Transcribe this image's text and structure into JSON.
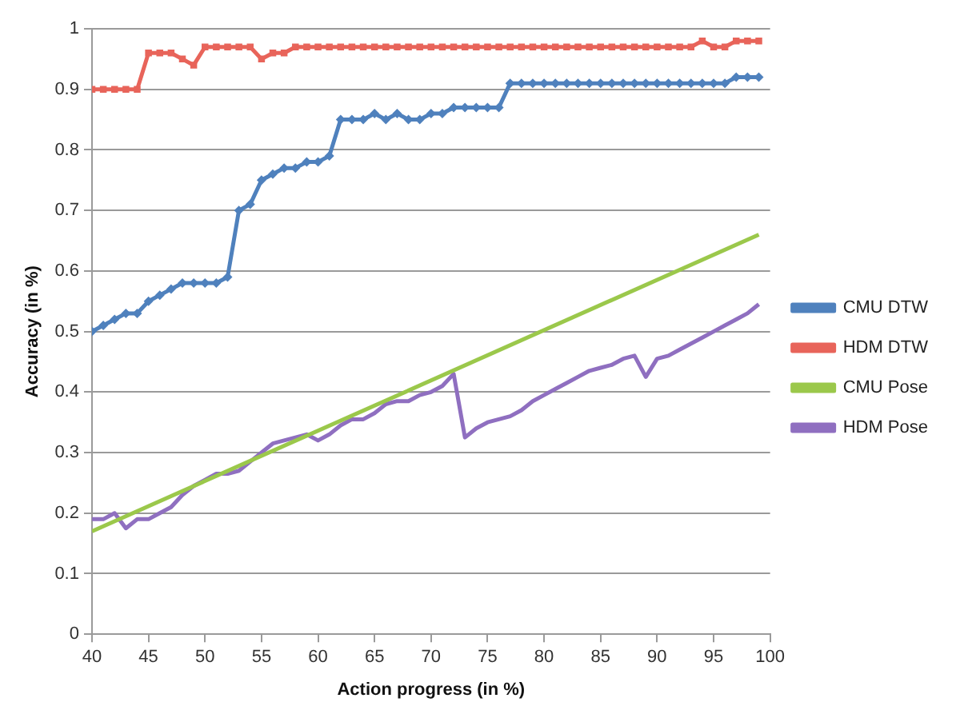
{
  "chart_data": {
    "type": "line",
    "xlabel": "Action progress (in %)",
    "ylabel": "Accuracy (in %)",
    "xlim": [
      40,
      100
    ],
    "xticks": [
      40,
      45,
      50,
      55,
      60,
      65,
      70,
      75,
      80,
      85,
      90,
      95,
      100
    ],
    "ylim": [
      0,
      1
    ],
    "yticks": [
      0,
      0.1,
      0.2,
      0.3,
      0.4,
      0.5,
      0.6,
      0.7,
      0.8,
      0.9,
      1
    ],
    "grid": "y",
    "legend": "right",
    "line_style": "solid",
    "series": [
      {
        "name": "CMU DTW",
        "color": "#4f81bd",
        "marker": "diamond",
        "x": [
          40,
          41,
          42,
          43,
          44,
          45,
          46,
          47,
          48,
          49,
          50,
          51,
          52,
          53,
          54,
          55,
          56,
          57,
          58,
          59,
          60,
          61,
          62,
          63,
          64,
          65,
          66,
          67,
          68,
          69,
          70,
          71,
          72,
          73,
          74,
          75,
          76,
          77,
          78,
          79,
          80,
          81,
          82,
          83,
          84,
          85,
          86,
          87,
          88,
          89,
          90,
          91,
          92,
          93,
          94,
          95,
          96,
          97,
          98,
          99
        ],
        "values": [
          0.5,
          0.51,
          0.52,
          0.53,
          0.53,
          0.55,
          0.56,
          0.57,
          0.58,
          0.58,
          0.58,
          0.58,
          0.59,
          0.7,
          0.71,
          0.75,
          0.76,
          0.77,
          0.77,
          0.78,
          0.78,
          0.79,
          0.85,
          0.85,
          0.85,
          0.86,
          0.85,
          0.86,
          0.85,
          0.85,
          0.86,
          0.86,
          0.87,
          0.87,
          0.87,
          0.87,
          0.87,
          0.91,
          0.91,
          0.91,
          0.91,
          0.91,
          0.91,
          0.91,
          0.91,
          0.91,
          0.91,
          0.91,
          0.91,
          0.91,
          0.91,
          0.91,
          0.91,
          0.91,
          0.91,
          0.91,
          0.91,
          0.92,
          0.92,
          0.92
        ]
      },
      {
        "name": "HDM DTW",
        "color": "#e8645a",
        "marker": "square",
        "x": [
          40,
          41,
          42,
          43,
          44,
          45,
          46,
          47,
          48,
          49,
          50,
          51,
          52,
          53,
          54,
          55,
          56,
          57,
          58,
          59,
          60,
          61,
          62,
          63,
          64,
          65,
          66,
          67,
          68,
          69,
          70,
          71,
          72,
          73,
          74,
          75,
          76,
          77,
          78,
          79,
          80,
          81,
          82,
          83,
          84,
          85,
          86,
          87,
          88,
          89,
          90,
          91,
          92,
          93,
          94,
          95,
          96,
          97,
          98,
          99
        ],
        "values": [
          0.9,
          0.9,
          0.9,
          0.9,
          0.9,
          0.96,
          0.96,
          0.96,
          0.95,
          0.94,
          0.97,
          0.97,
          0.97,
          0.97,
          0.97,
          0.95,
          0.96,
          0.96,
          0.97,
          0.97,
          0.97,
          0.97,
          0.97,
          0.97,
          0.97,
          0.97,
          0.97,
          0.97,
          0.97,
          0.97,
          0.97,
          0.97,
          0.97,
          0.97,
          0.97,
          0.97,
          0.97,
          0.97,
          0.97,
          0.97,
          0.97,
          0.97,
          0.97,
          0.97,
          0.97,
          0.97,
          0.97,
          0.97,
          0.97,
          0.97,
          0.97,
          0.97,
          0.97,
          0.97,
          0.98,
          0.97,
          0.97,
          0.98,
          0.98,
          0.98
        ]
      },
      {
        "name": "CMU Pose",
        "color": "#9bc84b",
        "marker": "none",
        "x": [
          40,
          99
        ],
        "values": [
          0.17,
          0.66
        ]
      },
      {
        "name": "HDM Pose",
        "color": "#8f6fc0",
        "marker": "none",
        "x": [
          40,
          41,
          42,
          43,
          44,
          45,
          46,
          47,
          48,
          49,
          50,
          51,
          52,
          53,
          54,
          55,
          56,
          57,
          58,
          59,
          60,
          61,
          62,
          63,
          64,
          65,
          66,
          67,
          68,
          69,
          70,
          71,
          72,
          73,
          74,
          75,
          76,
          77,
          78,
          79,
          80,
          81,
          82,
          83,
          84,
          85,
          86,
          87,
          88,
          89,
          90,
          91,
          92,
          93,
          94,
          95,
          96,
          97,
          98,
          99
        ],
        "values": [
          0.19,
          0.19,
          0.2,
          0.175,
          0.19,
          0.19,
          0.2,
          0.21,
          0.23,
          0.245,
          0.255,
          0.265,
          0.265,
          0.27,
          0.285,
          0.3,
          0.315,
          0.32,
          0.325,
          0.33,
          0.32,
          0.33,
          0.345,
          0.355,
          0.355,
          0.365,
          0.38,
          0.385,
          0.385,
          0.395,
          0.4,
          0.41,
          0.43,
          0.325,
          0.34,
          0.35,
          0.355,
          0.36,
          0.37,
          0.385,
          0.395,
          0.405,
          0.415,
          0.425,
          0.435,
          0.44,
          0.445,
          0.455,
          0.46,
          0.425,
          0.455,
          0.46,
          0.47,
          0.48,
          0.49,
          0.5,
          0.51,
          0.52,
          0.53,
          0.545
        ]
      }
    ]
  }
}
